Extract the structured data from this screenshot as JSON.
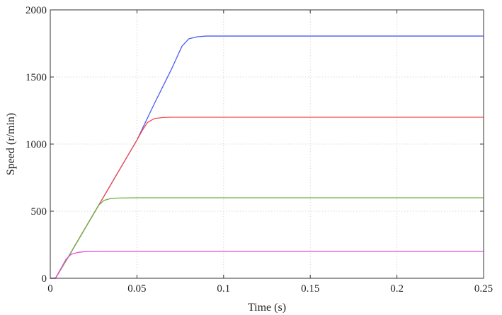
{
  "chart_data": {
    "type": "line",
    "title": "",
    "xlabel": "Time (s)",
    "ylabel": "Speed (r/min)",
    "xlim": [
      0,
      0.25
    ],
    "ylim": [
      0,
      2000
    ],
    "grid": true,
    "legend": "none",
    "x_ticks": [
      0,
      0.05,
      0.1,
      0.15,
      0.2,
      0.25
    ],
    "x_tick_labels": [
      "0",
      "0.05",
      "0.1",
      "0.15",
      "0.2",
      "0.25"
    ],
    "y_ticks": [
      0,
      500,
      1000,
      1500,
      2000
    ],
    "y_tick_labels": [
      "0",
      "500",
      "1000",
      "1500",
      "2000"
    ],
    "series": [
      {
        "color": "#4b5cf0",
        "x": [
          0,
          0.003,
          0.01,
          0.02,
          0.03,
          0.04,
          0.05,
          0.06,
          0.07,
          0.076,
          0.08,
          0.085,
          0.09,
          0.1,
          0.15,
          0.2,
          0.25
        ],
        "y": [
          0,
          0,
          150,
          370,
          590,
          810,
          1030,
          1300,
          1560,
          1730,
          1785,
          1800,
          1805,
          1805,
          1805,
          1805,
          1805
        ]
      },
      {
        "color": "#f04a4a",
        "x": [
          0,
          0.003,
          0.01,
          0.02,
          0.03,
          0.04,
          0.05,
          0.053,
          0.056,
          0.06,
          0.065,
          0.07,
          0.1,
          0.15,
          0.2,
          0.25
        ],
        "y": [
          0,
          0,
          150,
          370,
          590,
          810,
          1030,
          1100,
          1160,
          1190,
          1198,
          1200,
          1200,
          1200,
          1200,
          1200
        ]
      },
      {
        "color": "#6ab23a",
        "x": [
          0,
          0.003,
          0.01,
          0.02,
          0.025,
          0.028,
          0.031,
          0.035,
          0.04,
          0.05,
          0.1,
          0.15,
          0.2,
          0.25
        ],
        "y": [
          0,
          0,
          150,
          370,
          480,
          545,
          580,
          595,
          598,
          600,
          600,
          600,
          600,
          600
        ]
      },
      {
        "color": "#e84ae8",
        "x": [
          0,
          0.003,
          0.006,
          0.009,
          0.012,
          0.016,
          0.02,
          0.03,
          0.05,
          0.1,
          0.15,
          0.2,
          0.25
        ],
        "y": [
          0,
          0,
          70,
          140,
          178,
          193,
          198,
          200,
          200,
          200,
          200,
          200,
          200
        ]
      }
    ]
  }
}
